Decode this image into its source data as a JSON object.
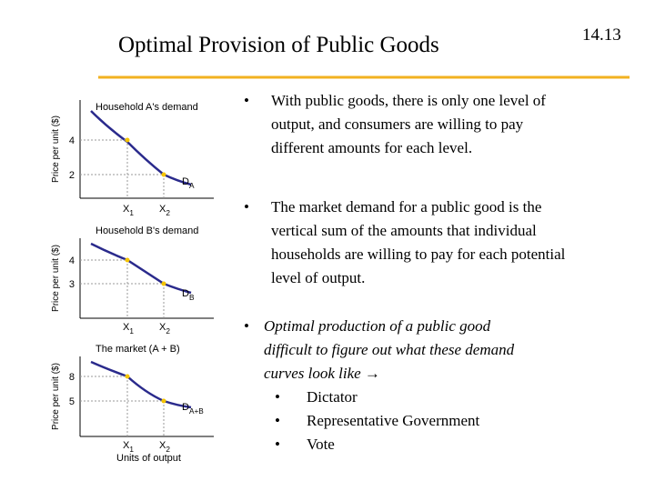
{
  "header": {
    "title": "Optimal Provision of Public Goods",
    "slide_number": "14.13"
  },
  "panels": [
    {
      "title": "Household A's demand",
      "y_label": "Price per unit ($)",
      "yticks": [
        4,
        2
      ],
      "x_labels": [
        {
          "base": "X",
          "sub": "1"
        },
        {
          "base": "X",
          "sub": "2"
        }
      ],
      "curve_label": {
        "base": "D",
        "sub": "A"
      }
    },
    {
      "title": "Household B's demand",
      "y_label": "Price per unit ($)",
      "yticks": [
        4,
        3
      ],
      "x_labels": [
        {
          "base": "X",
          "sub": "1"
        },
        {
          "base": "X",
          "sub": "2"
        }
      ],
      "curve_label": {
        "base": "D",
        "sub": "B"
      }
    },
    {
      "title": "The market (A + B)",
      "y_label": "Price per unit ($)",
      "yticks": [
        8,
        5
      ],
      "x_labels": [
        {
          "base": "X",
          "sub": "1"
        },
        {
          "base": "X",
          "sub": "2"
        }
      ],
      "curve_label": {
        "base": "D",
        "sub": "A+B"
      },
      "x_title": "Units of output"
    }
  ],
  "bullets": [
    {
      "lines": [
        "With public goods, there is only one level of",
        "output, and consumers are willing to pay",
        "different amounts for each level."
      ]
    },
    {
      "lines": [
        "The market demand for a public good is the",
        "vertical sum of the amounts that individual",
        "households are willing to pay for each potential",
        "level of output."
      ]
    },
    {
      "lines": [
        "Optimal production of a public good",
        "difficult to figure out what these demand",
        "curves look like →"
      ],
      "sub_bullets": [
        "Dictator",
        "Representative Government",
        "Vote"
      ]
    }
  ]
}
